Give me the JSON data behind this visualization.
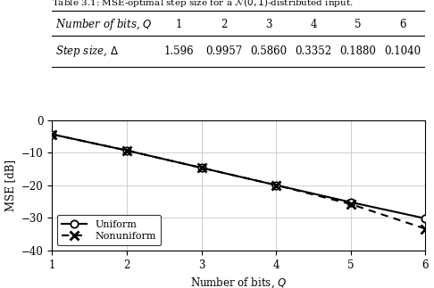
{
  "table_caption": "Table 3.1: MSE-optimal step size for a $\\mathcal{N}(0,1)$-distributed input.",
  "col_header_label": "Number of bits, $Q$",
  "col_values": [
    "1",
    "2",
    "3",
    "4",
    "5",
    "6"
  ],
  "row_header_label": "Step size, $\\Delta$",
  "row_values": [
    "1.596",
    "0.9957",
    "0.5860",
    "0.3352",
    "0.1880",
    "0.1040"
  ],
  "bits": [
    1,
    2,
    3,
    4,
    5,
    6
  ],
  "uniform_mse_db": [
    -4.35,
    -9.3,
    -14.62,
    -19.93,
    -25.17,
    -30.15
  ],
  "nonuniform_mse_db": [
    -4.35,
    -9.3,
    -14.62,
    -19.93,
    -25.75,
    -33.3
  ],
  "xlabel": "Number of bits, $Q$",
  "ylabel": "MSE [dB]",
  "ylim": [
    -40,
    0
  ],
  "xlim": [
    1,
    6
  ],
  "yticks": [
    0,
    -10,
    -20,
    -30,
    -40
  ],
  "xticks": [
    1,
    2,
    3,
    4,
    5,
    6
  ],
  "uniform_label": "Uniform",
  "nonuniform_label": "Nonuniform",
  "line_color": "#000000",
  "bg_color": "#ffffff",
  "grid_color": "#c8c8c8"
}
